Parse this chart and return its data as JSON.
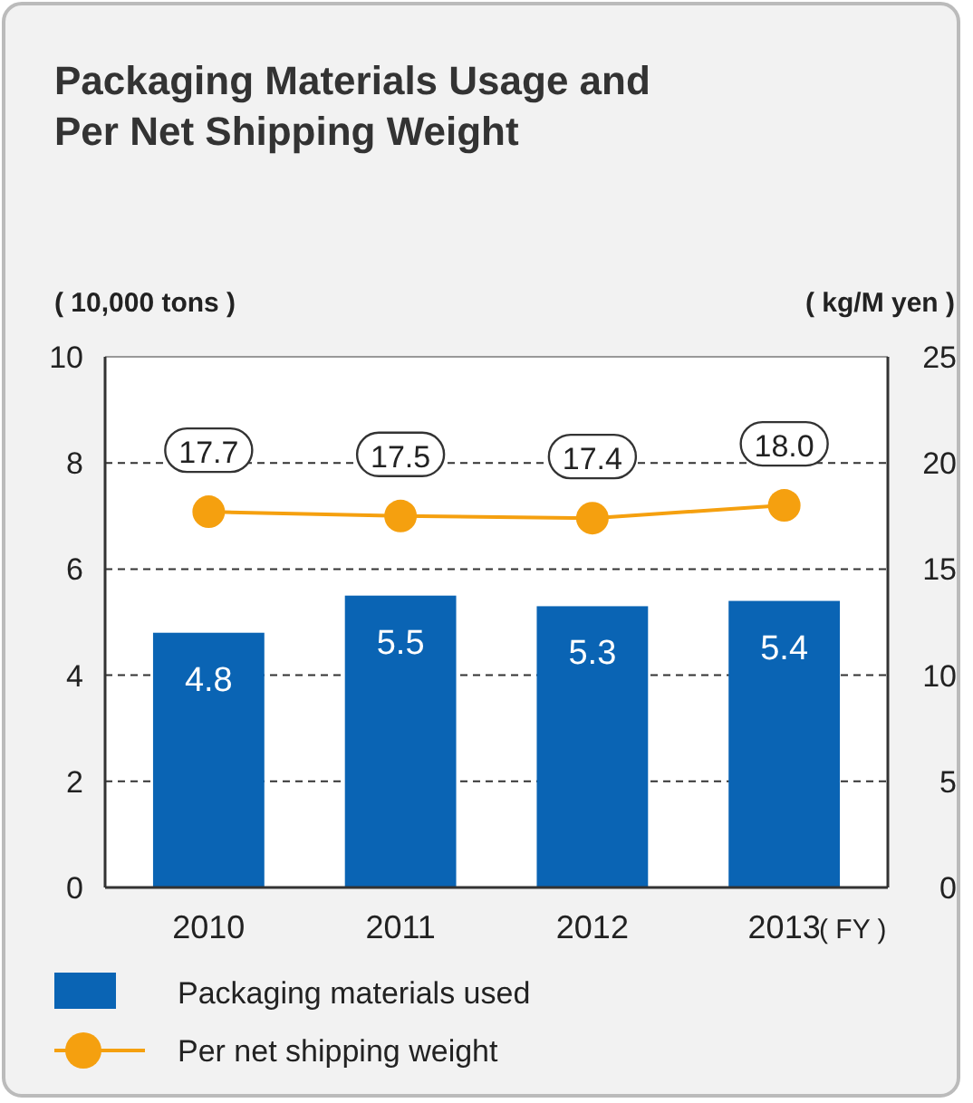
{
  "chart_data": {
    "type": "bar",
    "title": "Packaging Materials Usage and Per Net Shipping Weight",
    "xlabel": "( FY )",
    "ylabel": "( 10,000 tons )",
    "y2label": "( kg/M yen )",
    "categories": [
      "2010",
      "2011",
      "2012",
      "2013"
    ],
    "series": [
      {
        "name": "Packaging materials used",
        "color": "#0a64b4",
        "values": [
          4.8,
          5.5,
          5.3,
          5.4
        ],
        "value_labels": [
          "4.8",
          "5.5",
          "5.3",
          "5.4"
        ]
      },
      {
        "name": "Per net shipping weight",
        "type": "line",
        "axis": "y2",
        "color": "#f5a00f",
        "values": [
          17.7,
          17.5,
          17.4,
          18.0
        ],
        "value_labels": [
          "17.7",
          "17.5",
          "17.4",
          "18.0"
        ]
      }
    ],
    "ylim": [
      0,
      10
    ],
    "yticks": [
      0,
      2,
      4,
      6,
      8,
      10
    ],
    "y2lim": [
      0,
      25
    ],
    "y2ticks": [
      0,
      5,
      10,
      15,
      20,
      25
    ],
    "grid": "y",
    "legend": "bottom",
    "marker": "circle"
  }
}
